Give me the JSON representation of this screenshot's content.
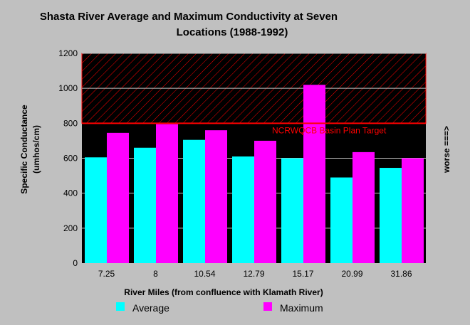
{
  "chart_data": {
    "type": "bar",
    "title_lines": [
      "Shasta River Average and Maximum Conductivity at Seven",
      "Locations (1988-1992)"
    ],
    "xlabel": "River Miles (from confluence with Klamath River)",
    "ylabel_lines": [
      "Specific Conductance",
      "(umhos/cm)"
    ],
    "right_label": "worse ===>",
    "categories": [
      "7.25",
      "8",
      "10.54",
      "12.79",
      "15.17",
      "20.99",
      "31.86"
    ],
    "series": [
      {
        "name": "Average",
        "color": "#00ffff",
        "values": [
          605,
          660,
          705,
          610,
          600,
          490,
          545
        ]
      },
      {
        "name": "Maximum",
        "color": "#ff00ff",
        "values": [
          745,
          795,
          760,
          700,
          1020,
          635,
          600
        ]
      }
    ],
    "ylim": [
      0,
      1200
    ],
    "yticks": [
      0,
      200,
      400,
      600,
      800,
      1000,
      1200
    ],
    "grid": true,
    "legend_placement": "bottom",
    "target": {
      "value": 800,
      "label": "NCRWQCB Basin Plan Target",
      "color": "#ff0000",
      "region": [
        800,
        1200
      ],
      "region_pattern": "diagonal-hatch"
    }
  }
}
